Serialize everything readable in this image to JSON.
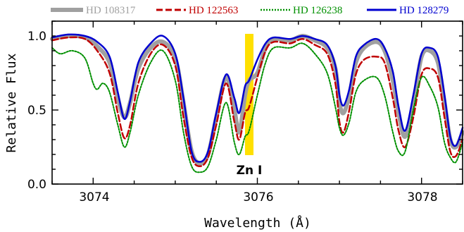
{
  "chart_data": {
    "type": "line",
    "xlabel": "Wavelength (Å)",
    "ylabel": "Relative Flux",
    "xlim": [
      3073.5,
      3078.5
    ],
    "ylim": [
      0.0,
      1.1
    ],
    "x_ticks": [
      "3074",
      "3076",
      "3078"
    ],
    "y_ticks": [
      "0.0",
      "0.5",
      "1.0"
    ],
    "legend_position": "top",
    "annotation": {
      "text": "Zn I",
      "x": 3075.9,
      "band_color": "#ffe000"
    },
    "series": [
      {
        "name": "HD 108317",
        "color": "#a0a0a0",
        "style": "thick-solid",
        "points": [
          [
            3073.5,
            0.98
          ],
          [
            3073.7,
            1.0
          ],
          [
            3073.9,
            0.99
          ],
          [
            3074.05,
            0.93
          ],
          [
            3074.2,
            0.82
          ],
          [
            3074.3,
            0.58
          ],
          [
            3074.38,
            0.45
          ],
          [
            3074.45,
            0.55
          ],
          [
            3074.55,
            0.78
          ],
          [
            3074.7,
            0.92
          ],
          [
            3074.85,
            0.96
          ],
          [
            3075.0,
            0.85
          ],
          [
            3075.1,
            0.55
          ],
          [
            3075.2,
            0.22
          ],
          [
            3075.3,
            0.14
          ],
          [
            3075.4,
            0.2
          ],
          [
            3075.5,
            0.45
          ],
          [
            3075.62,
            0.72
          ],
          [
            3075.72,
            0.5
          ],
          [
            3075.78,
            0.35
          ],
          [
            3075.85,
            0.6
          ],
          [
            3075.9,
            0.7
          ],
          [
            3076.0,
            0.75
          ],
          [
            3076.1,
            0.92
          ],
          [
            3076.2,
            0.98
          ],
          [
            3076.4,
            0.97
          ],
          [
            3076.55,
            1.0
          ],
          [
            3076.7,
            0.97
          ],
          [
            3076.85,
            0.92
          ],
          [
            3076.95,
            0.78
          ],
          [
            3077.0,
            0.55
          ],
          [
            3077.05,
            0.48
          ],
          [
            3077.12,
            0.6
          ],
          [
            3077.2,
            0.82
          ],
          [
            3077.3,
            0.92
          ],
          [
            3077.45,
            0.96
          ],
          [
            3077.55,
            0.9
          ],
          [
            3077.65,
            0.7
          ],
          [
            3077.72,
            0.48
          ],
          [
            3077.8,
            0.32
          ],
          [
            3077.9,
            0.55
          ],
          [
            3078.0,
            0.86
          ],
          [
            3078.1,
            0.9
          ],
          [
            3078.2,
            0.82
          ],
          [
            3078.28,
            0.55
          ],
          [
            3078.35,
            0.3
          ],
          [
            3078.42,
            0.25
          ],
          [
            3078.5,
            0.35
          ]
        ]
      },
      {
        "name": "HD 122563",
        "color": "#c00000",
        "style": "dashed",
        "points": [
          [
            3073.5,
            0.97
          ],
          [
            3073.7,
            0.99
          ],
          [
            3073.9,
            0.98
          ],
          [
            3074.05,
            0.9
          ],
          [
            3074.2,
            0.75
          ],
          [
            3074.3,
            0.48
          ],
          [
            3074.38,
            0.31
          ],
          [
            3074.45,
            0.4
          ],
          [
            3074.55,
            0.68
          ],
          [
            3074.7,
            0.88
          ],
          [
            3074.85,
            0.94
          ],
          [
            3075.0,
            0.8
          ],
          [
            3075.1,
            0.45
          ],
          [
            3075.2,
            0.18
          ],
          [
            3075.3,
            0.12
          ],
          [
            3075.4,
            0.18
          ],
          [
            3075.5,
            0.4
          ],
          [
            3075.62,
            0.68
          ],
          [
            3075.72,
            0.42
          ],
          [
            3075.78,
            0.3
          ],
          [
            3075.85,
            0.48
          ],
          [
            3075.9,
            0.52
          ],
          [
            3076.0,
            0.72
          ],
          [
            3076.1,
            0.9
          ],
          [
            3076.2,
            0.96
          ],
          [
            3076.4,
            0.95
          ],
          [
            3076.55,
            0.98
          ],
          [
            3076.7,
            0.94
          ],
          [
            3076.85,
            0.88
          ],
          [
            3076.95,
            0.68
          ],
          [
            3077.0,
            0.42
          ],
          [
            3077.05,
            0.35
          ],
          [
            3077.12,
            0.5
          ],
          [
            3077.2,
            0.74
          ],
          [
            3077.3,
            0.84
          ],
          [
            3077.45,
            0.86
          ],
          [
            3077.55,
            0.82
          ],
          [
            3077.65,
            0.58
          ],
          [
            3077.72,
            0.36
          ],
          [
            3077.8,
            0.25
          ],
          [
            3077.9,
            0.45
          ],
          [
            3078.0,
            0.74
          ],
          [
            3078.1,
            0.78
          ],
          [
            3078.2,
            0.72
          ],
          [
            3078.28,
            0.45
          ],
          [
            3078.35,
            0.22
          ],
          [
            3078.42,
            0.19
          ],
          [
            3078.5,
            0.3
          ]
        ]
      },
      {
        "name": "HD 126238",
        "color": "#009000",
        "style": "dotted",
        "points": [
          [
            3073.5,
            0.92
          ],
          [
            3073.6,
            0.88
          ],
          [
            3073.75,
            0.9
          ],
          [
            3073.9,
            0.85
          ],
          [
            3074.0,
            0.68
          ],
          [
            3074.05,
            0.64
          ],
          [
            3074.12,
            0.68
          ],
          [
            3074.2,
            0.62
          ],
          [
            3074.3,
            0.4
          ],
          [
            3074.38,
            0.25
          ],
          [
            3074.45,
            0.35
          ],
          [
            3074.55,
            0.6
          ],
          [
            3074.7,
            0.82
          ],
          [
            3074.85,
            0.9
          ],
          [
            3075.0,
            0.7
          ],
          [
            3075.1,
            0.35
          ],
          [
            3075.2,
            0.12
          ],
          [
            3075.3,
            0.08
          ],
          [
            3075.4,
            0.12
          ],
          [
            3075.5,
            0.3
          ],
          [
            3075.62,
            0.55
          ],
          [
            3075.72,
            0.28
          ],
          [
            3075.78,
            0.2
          ],
          [
            3075.85,
            0.32
          ],
          [
            3075.9,
            0.36
          ],
          [
            3076.0,
            0.6
          ],
          [
            3076.1,
            0.82
          ],
          [
            3076.2,
            0.92
          ],
          [
            3076.4,
            0.92
          ],
          [
            3076.55,
            0.95
          ],
          [
            3076.7,
            0.88
          ],
          [
            3076.85,
            0.75
          ],
          [
            3076.95,
            0.52
          ],
          [
            3077.0,
            0.38
          ],
          [
            3077.05,
            0.33
          ],
          [
            3077.12,
            0.42
          ],
          [
            3077.2,
            0.62
          ],
          [
            3077.3,
            0.7
          ],
          [
            3077.45,
            0.72
          ],
          [
            3077.55,
            0.6
          ],
          [
            3077.65,
            0.35
          ],
          [
            3077.72,
            0.22
          ],
          [
            3077.8,
            0.22
          ],
          [
            3077.9,
            0.5
          ],
          [
            3078.0,
            0.72
          ],
          [
            3078.1,
            0.66
          ],
          [
            3078.2,
            0.52
          ],
          [
            3078.28,
            0.28
          ],
          [
            3078.35,
            0.18
          ],
          [
            3078.42,
            0.15
          ],
          [
            3078.5,
            0.28
          ]
        ]
      },
      {
        "name": "HD 128279",
        "color": "#0000d0",
        "style": "solid",
        "points": [
          [
            3073.5,
            0.99
          ],
          [
            3073.7,
            1.01
          ],
          [
            3073.9,
            1.0
          ],
          [
            3074.05,
            0.96
          ],
          [
            3074.2,
            0.86
          ],
          [
            3074.3,
            0.62
          ],
          [
            3074.38,
            0.44
          ],
          [
            3074.45,
            0.56
          ],
          [
            3074.55,
            0.82
          ],
          [
            3074.7,
            0.95
          ],
          [
            3074.85,
            1.0
          ],
          [
            3075.0,
            0.88
          ],
          [
            3075.1,
            0.58
          ],
          [
            3075.2,
            0.22
          ],
          [
            3075.3,
            0.15
          ],
          [
            3075.4,
            0.22
          ],
          [
            3075.5,
            0.48
          ],
          [
            3075.62,
            0.74
          ],
          [
            3075.72,
            0.58
          ],
          [
            3075.78,
            0.48
          ],
          [
            3075.85,
            0.66
          ],
          [
            3075.9,
            0.7
          ],
          [
            3076.0,
            0.84
          ],
          [
            3076.1,
            0.95
          ],
          [
            3076.2,
            0.99
          ],
          [
            3076.4,
            0.98
          ],
          [
            3076.55,
            1.0
          ],
          [
            3076.7,
            0.98
          ],
          [
            3076.85,
            0.94
          ],
          [
            3076.95,
            0.8
          ],
          [
            3077.0,
            0.6
          ],
          [
            3077.05,
            0.53
          ],
          [
            3077.12,
            0.64
          ],
          [
            3077.2,
            0.86
          ],
          [
            3077.3,
            0.94
          ],
          [
            3077.45,
            0.98
          ],
          [
            3077.55,
            0.92
          ],
          [
            3077.65,
            0.76
          ],
          [
            3077.72,
            0.52
          ],
          [
            3077.8,
            0.36
          ],
          [
            3077.9,
            0.6
          ],
          [
            3078.0,
            0.88
          ],
          [
            3078.1,
            0.92
          ],
          [
            3078.2,
            0.86
          ],
          [
            3078.28,
            0.6
          ],
          [
            3078.35,
            0.32
          ],
          [
            3078.42,
            0.26
          ],
          [
            3078.5,
            0.38
          ]
        ]
      }
    ]
  }
}
